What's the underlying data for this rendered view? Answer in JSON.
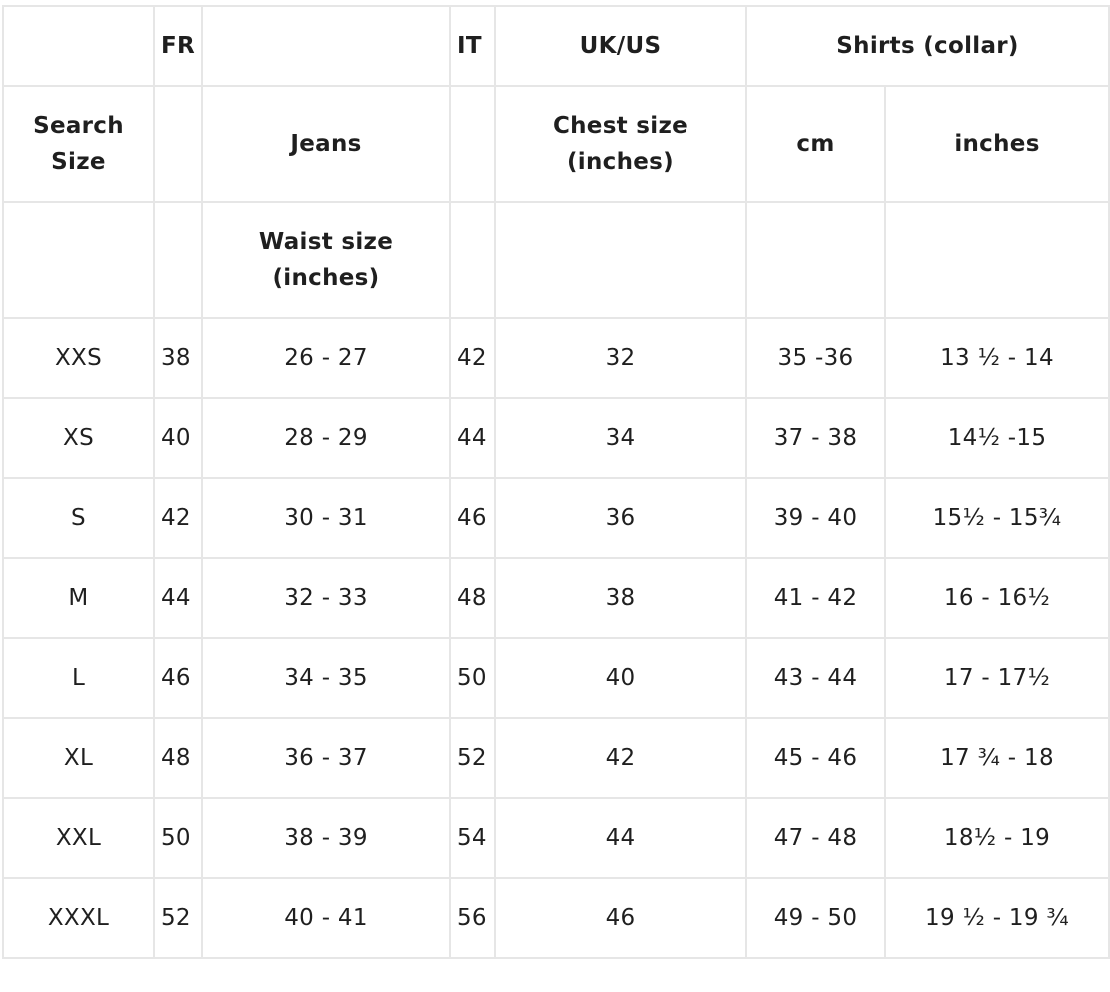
{
  "header": {
    "fr": "FR",
    "it": "IT",
    "ukus": "UK/US",
    "shirts": "Shirts (collar)",
    "search_size_line1": "Search",
    "search_size_line2": "Size",
    "jeans": "Jeans",
    "chest_line1": "Chest size",
    "chest_line2": "(inches)",
    "cm": "cm",
    "inches": "inches",
    "waist_line1": "Waist size",
    "waist_line2": "(inches)"
  },
  "rows": [
    {
      "size": "XXS",
      "fr": "38",
      "jeans": "26 - 27",
      "it": "42",
      "chest": "32",
      "cm": "35 -36",
      "inches": "13 ½  - 14"
    },
    {
      "size": "XS",
      "fr": "40",
      "jeans": "28 - 29",
      "it": "44",
      "chest": "34",
      "cm": "37 - 38",
      "inches": "14½ -15"
    },
    {
      "size": "S",
      "fr": "42",
      "jeans": "30 - 31",
      "it": "46",
      "chest": "36",
      "cm": "39 - 40",
      "inches": "15½ - 15¾"
    },
    {
      "size": "M",
      "fr": "44",
      "jeans": "32 - 33",
      "it": "48",
      "chest": "38",
      "cm": "41 - 42",
      "inches": "16 - 16½"
    },
    {
      "size": "L",
      "fr": "46",
      "jeans": "34 - 35",
      "it": "50",
      "chest": "40",
      "cm": "43 - 44",
      "inches": "17 - 17½"
    },
    {
      "size": "XL",
      "fr": "48",
      "jeans": "36 - 37",
      "it": "52",
      "chest": "42",
      "cm": "45 - 46",
      "inches": "17 ¾ - 18"
    },
    {
      "size": "XXL",
      "fr": "50",
      "jeans": "38 - 39",
      "it": "54",
      "chest": "44",
      "cm": "47 - 48",
      "inches": "18½ - 19"
    },
    {
      "size": "XXXL",
      "fr": "52",
      "jeans": "40 - 41",
      "it": "56",
      "chest": "46",
      "cm": "49 - 50",
      "inches": "19 ½ - 19 ¾"
    }
  ]
}
